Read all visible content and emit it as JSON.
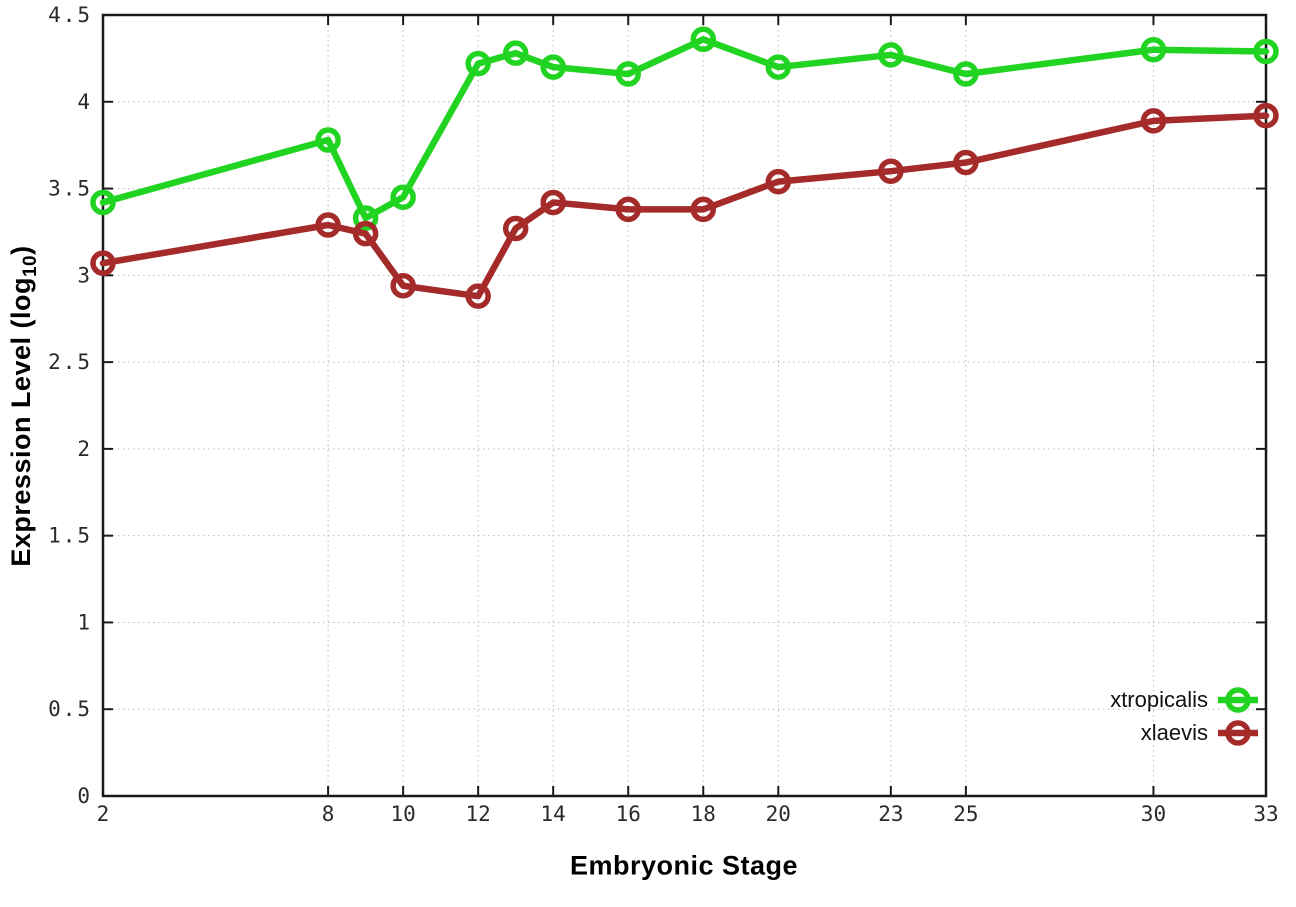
{
  "chart_data": {
    "type": "line",
    "title": "",
    "xlabel": "Embryonic Stage",
    "ylabel_prefix": "Expression Level (log",
    "ylabel_sub": "10",
    "ylabel_suffix": ")",
    "xlim": [
      2,
      33
    ],
    "ylim": [
      0,
      4.5
    ],
    "xticks": [
      2,
      8,
      10,
      12,
      14,
      16,
      18,
      20,
      23,
      25,
      30,
      33
    ],
    "xtick_labels": [
      "2",
      "8",
      "10",
      "12",
      "14",
      "16",
      "18",
      "20",
      "23",
      "25",
      "30",
      "33"
    ],
    "yticks": [
      0,
      0.5,
      1,
      1.5,
      2,
      2.5,
      3,
      3.5,
      4,
      4.5
    ],
    "ytick_labels": [
      "0",
      "0.5",
      "1",
      "1.5",
      "2",
      "2.5",
      "3",
      "3.5",
      "4",
      "4.5"
    ],
    "grid": true,
    "grid_style": "dotted",
    "legend_position": "inside-right-lower",
    "marker": "open-circle",
    "x": [
      2,
      8,
      9,
      10,
      12,
      13,
      14,
      16,
      18,
      20,
      23,
      25,
      30,
      33
    ],
    "series": [
      {
        "name": "xtropicalis",
        "color": "#22d422",
        "values": [
          3.42,
          3.78,
          3.33,
          3.45,
          4.22,
          4.28,
          4.2,
          4.16,
          4.36,
          4.2,
          4.27,
          4.16,
          4.3,
          4.29
        ]
      },
      {
        "name": "xlaevis",
        "color": "#a52a2a",
        "values": [
          3.07,
          3.29,
          3.24,
          2.94,
          2.88,
          3.27,
          3.42,
          3.38,
          3.38,
          3.54,
          3.6,
          3.65,
          3.89,
          3.92
        ]
      }
    ],
    "axis_color": "#1a1a1a",
    "grid_color": "#bbbbbb",
    "tick_label_color": "#2a2a2a"
  }
}
